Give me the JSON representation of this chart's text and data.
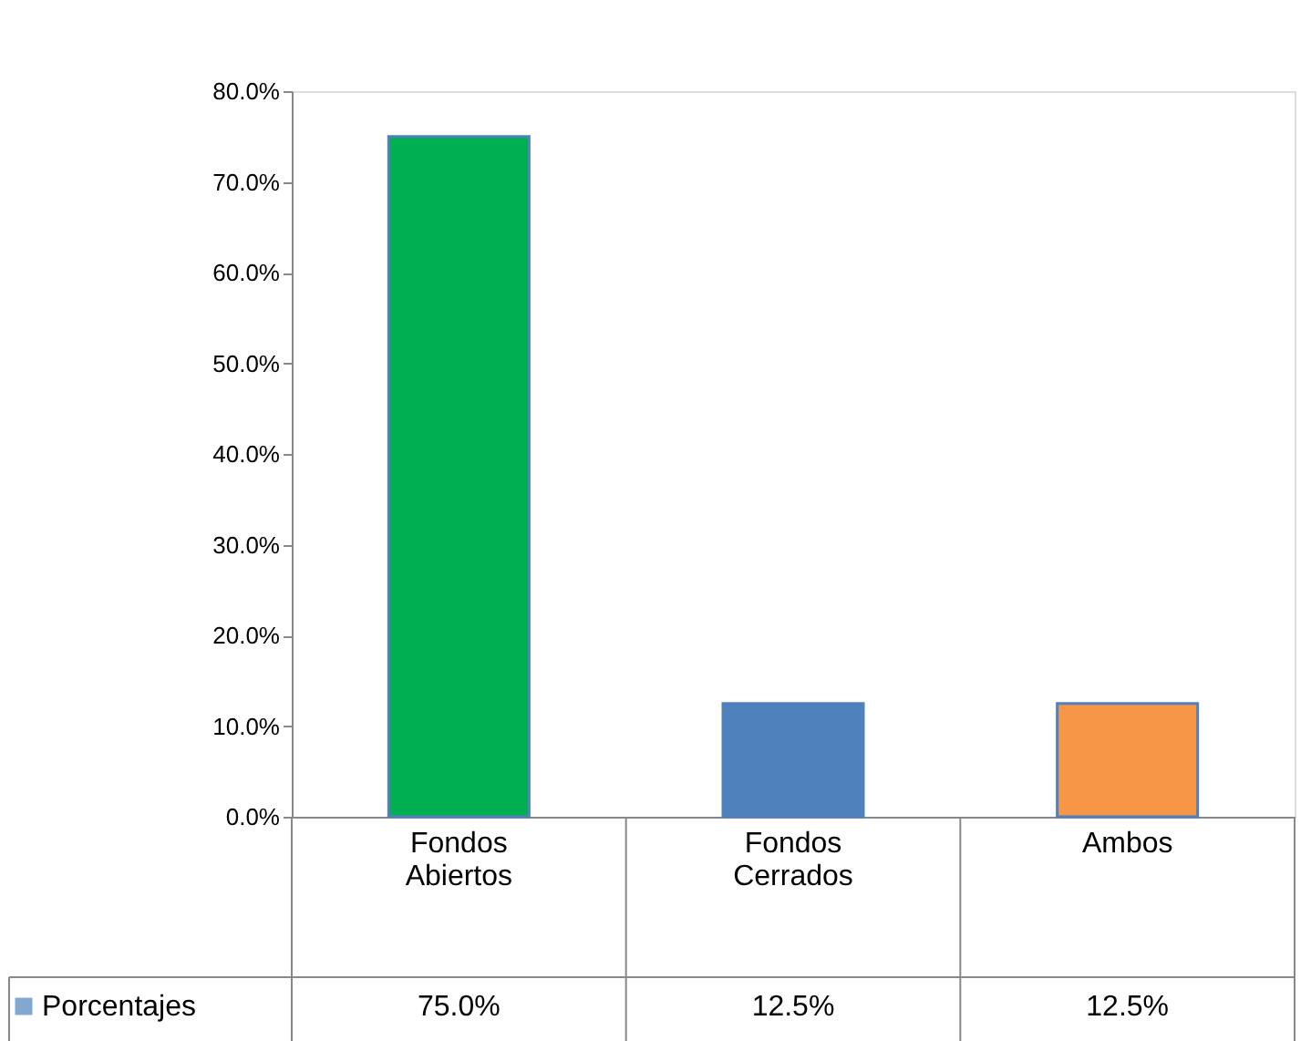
{
  "chart_data": {
    "type": "bar",
    "categories": [
      "Fondos Abiertos",
      "Fondos Cerrados",
      "Ambos"
    ],
    "series": [
      {
        "name": "Porcentajes",
        "color": "#4f81bd",
        "values": [
          75,
          12.5,
          12.5
        ],
        "value_labels": [
          "75.0%",
          "12.5%",
          "12.5%"
        ]
      }
    ],
    "colors": [
      "#00b050",
      "#4f81bd",
      "#f79646"
    ],
    "ylim": [
      0,
      80
    ],
    "yticks": [
      {
        "value": 0,
        "label": "0.0%"
      },
      {
        "value": 10,
        "label": "10.0%"
      },
      {
        "value": 20,
        "label": "20.0%"
      },
      {
        "value": 30,
        "label": "30.0%"
      },
      {
        "value": 40,
        "label": "40.0%"
      },
      {
        "value": 50,
        "label": "50.0%"
      },
      {
        "value": 60,
        "label": "60.0%"
      },
      {
        "value": 70,
        "label": "70.0%"
      },
      {
        "value": 80,
        "label": "80.0%"
      }
    ],
    "grid": false,
    "legend": "bottom left"
  }
}
